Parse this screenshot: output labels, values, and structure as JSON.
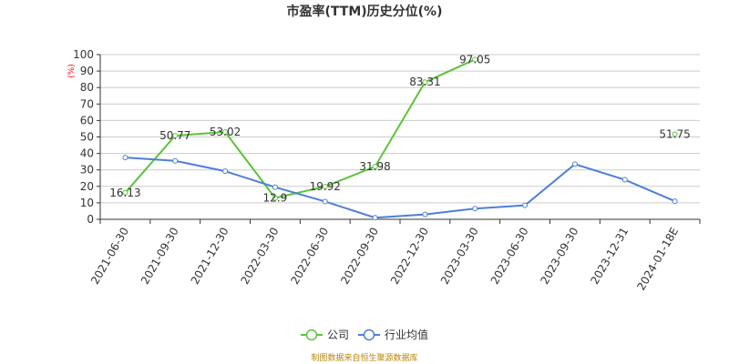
{
  "chart_data": {
    "type": "line",
    "title": "市盈率(TTM)历史分位(%)",
    "y_unit": "(%)",
    "ylim": [
      0,
      100
    ],
    "y_ticks": [
      0,
      10,
      20,
      30,
      40,
      50,
      60,
      70,
      80,
      90,
      100
    ],
    "categories": [
      "2021-06-30",
      "2021-09-30",
      "2021-12-30",
      "2022-03-30",
      "2022-06-30",
      "2022-09-30",
      "2022-12-30",
      "2023-03-30",
      "2023-06-30",
      "2023-09-30",
      "2023-12-31",
      "2024-01-18E"
    ],
    "grid": true,
    "legend_position": "bottom",
    "series": [
      {
        "name": "公司",
        "color": "#5cc33a",
        "values": [
          16.13,
          50.77,
          53.02,
          12.9,
          19.92,
          31.98,
          83.31,
          97.05,
          null,
          null,
          null,
          51.75
        ],
        "labels": [
          "16.13",
          "50.77",
          "53.02",
          "12.9",
          "19.92",
          "31.98",
          "83.31",
          "97.05",
          null,
          null,
          null,
          "51.75"
        ]
      },
      {
        "name": "行业均值",
        "color": "#4e7fd6",
        "values": [
          37.5,
          35.5,
          29.2,
          19.5,
          10.8,
          1.0,
          3.0,
          6.5,
          8.5,
          33.5,
          24.0,
          11.0
        ]
      }
    ],
    "source": "制图数据来自恒生聚源数据库",
    "unit_color": "#ff0000",
    "source_color": "#b8860b"
  }
}
